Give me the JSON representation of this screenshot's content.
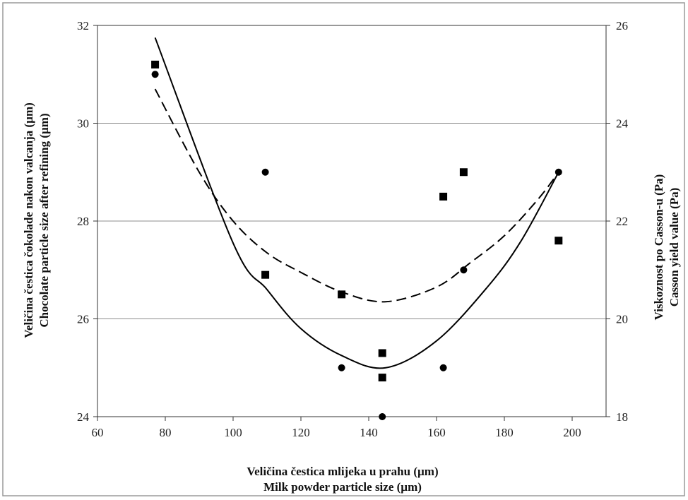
{
  "chart_data": {
    "type": "scatter",
    "title": "",
    "xlabel": [
      "Veličina čestica mlijeka u prahu (µm)",
      "Milk powder particle size (µm)"
    ],
    "ylabel_left": [
      "Veličina čestica čokolade nakon valcanja (µm)",
      "Chocolate particle size after refining (µm)"
    ],
    "ylabel_right": [
      "Viskoznost po Casson-u (Pa)",
      "Casson yield value (Pa)"
    ],
    "xlim": [
      60,
      210
    ],
    "ylim_left": [
      24,
      32
    ],
    "ylim_right": [
      18,
      26
    ],
    "xticks": [
      "60",
      "80",
      "100",
      "120",
      "140",
      "160",
      "180",
      "200"
    ],
    "yticks_left": [
      "24",
      "26",
      "28",
      "30",
      "32"
    ],
    "yticks_right": [
      "18",
      "20",
      "22",
      "24",
      "26"
    ],
    "grid": "horizontal",
    "series": [
      {
        "axis": "left",
        "marker": "circle",
        "trendline": "solid",
        "points": [
          [
            77,
            31.0
          ],
          [
            109.5,
            29.0
          ],
          [
            132,
            25.0
          ],
          [
            144,
            24.0
          ],
          [
            162,
            25.0
          ],
          [
            168,
            27.0
          ],
          [
            196,
            29.0
          ]
        ]
      },
      {
        "axis": "right",
        "marker": "square",
        "trendline": "dashed",
        "points": [
          [
            77,
            25.2
          ],
          [
            109.5,
            20.9
          ],
          [
            132,
            20.5
          ],
          [
            144,
            18.8
          ],
          [
            144,
            19.3
          ],
          [
            162,
            22.5
          ],
          [
            168,
            23.0
          ],
          [
            196,
            21.6
          ]
        ]
      }
    ],
    "trend_solid": {
      "axis": "left",
      "points": [
        [
          77,
          31.75
        ],
        [
          100,
          27.55
        ],
        [
          110,
          26.6
        ],
        [
          120,
          25.8
        ],
        [
          132,
          25.25
        ],
        [
          145,
          25.0
        ],
        [
          160,
          25.55
        ],
        [
          175,
          26.65
        ],
        [
          185,
          27.6
        ],
        [
          196,
          29.0
        ]
      ]
    },
    "trend_dashed": {
      "axis": "right",
      "points": [
        [
          77,
          24.7
        ],
        [
          90,
          23.0
        ],
        [
          100,
          22.0
        ],
        [
          110,
          21.35
        ],
        [
          120,
          20.95
        ],
        [
          132,
          20.55
        ],
        [
          145,
          20.35
        ],
        [
          160,
          20.65
        ],
        [
          170,
          21.15
        ],
        [
          180,
          21.7
        ],
        [
          190,
          22.45
        ],
        [
          196,
          23.0
        ]
      ]
    }
  }
}
